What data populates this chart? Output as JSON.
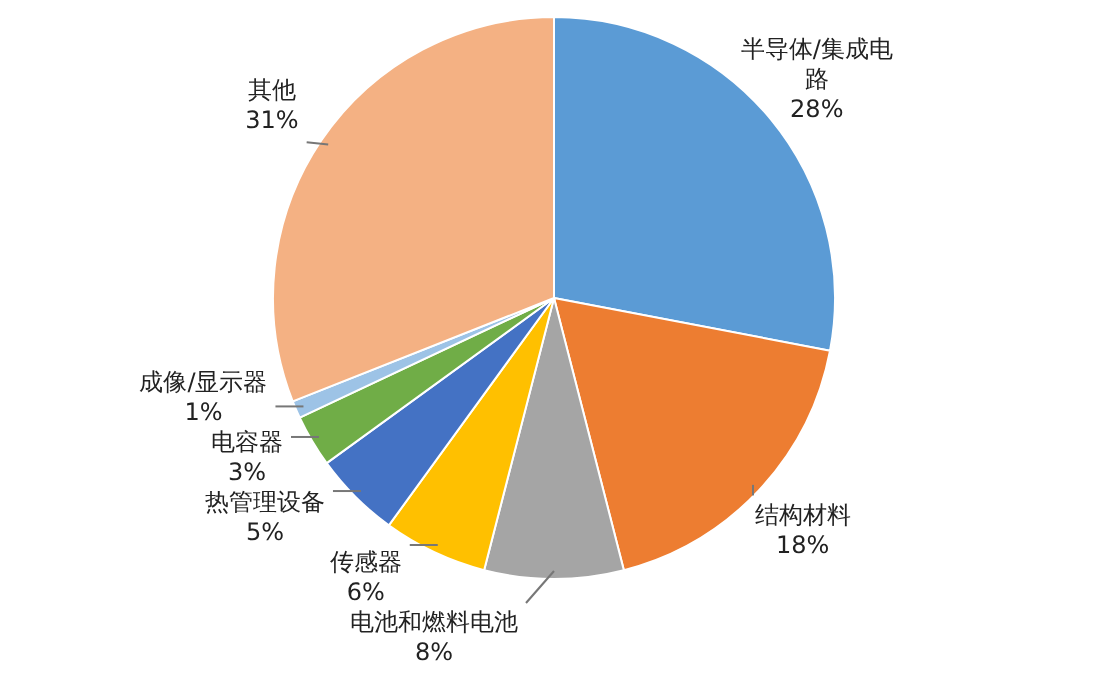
{
  "chart_data": {
    "type": "pie",
    "categories": [
      "半导体/集成电路",
      "结构材料",
      "电池和燃料电池",
      "传感器",
      "热管理设备",
      "电容器",
      "成像/显示器",
      "其他"
    ],
    "values": [
      28,
      18,
      8,
      6,
      5,
      3,
      1,
      31
    ],
    "colors": [
      "#5b9bd5",
      "#ed7d31",
      "#a5a5a5",
      "#ffc000",
      "#4472c4",
      "#70ad47",
      "#9dc3e6",
      "#f4b183"
    ],
    "value_labels": [
      "28%",
      "18%",
      "8%",
      "6%",
      "5%",
      "3%",
      "1%",
      "31%"
    ],
    "legend": false
  }
}
